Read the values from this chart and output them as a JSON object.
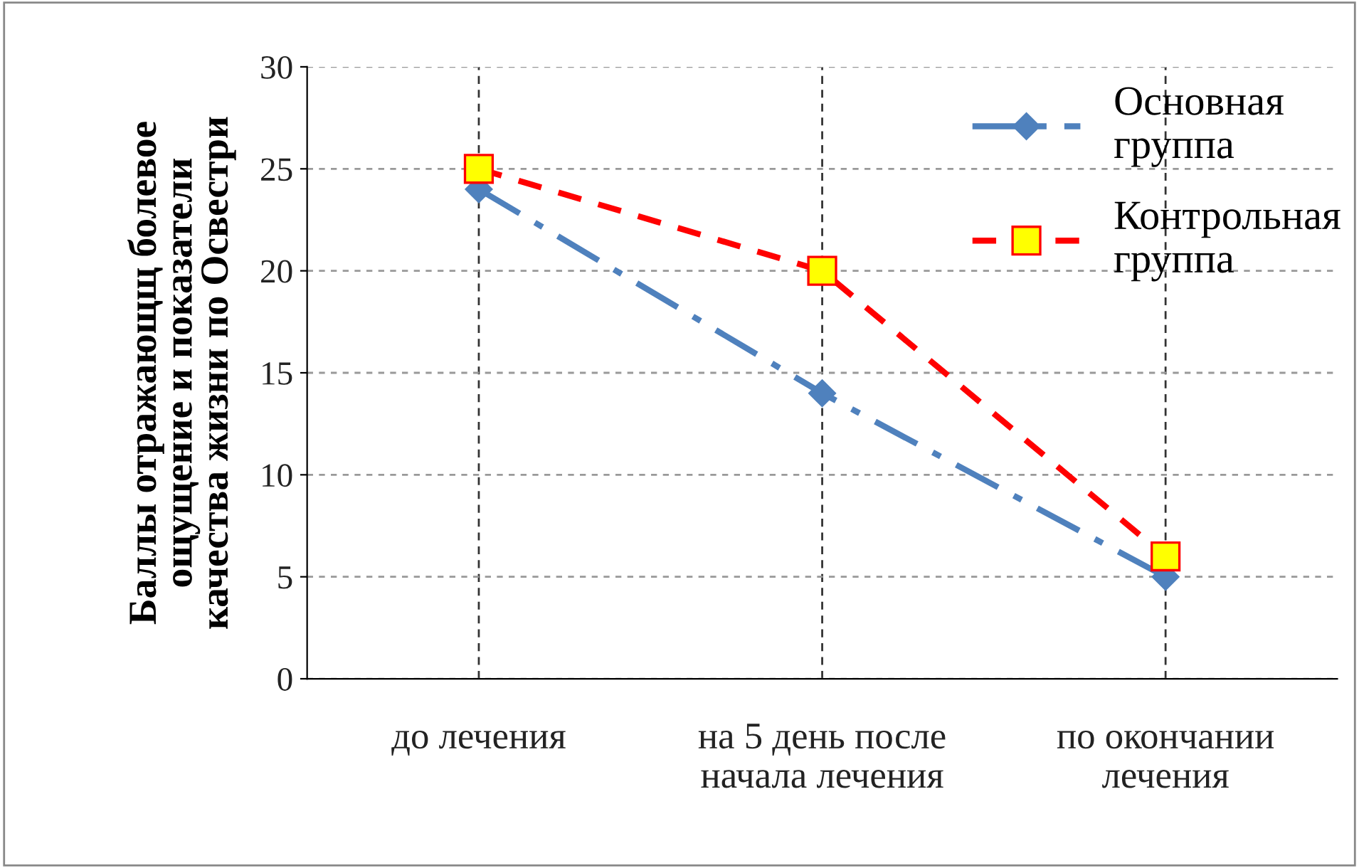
{
  "chart_data": {
    "type": "line",
    "ylabel": "Баллы отражающщ болевое\nощущение и показатели\nкачества жизни по Освестри",
    "categories": [
      "до лечения",
      "на 5 день после\nначала лечения",
      "по окончании\nлечения"
    ],
    "series": [
      {
        "name": "Основная\nгруппа",
        "color": "#4f81bd",
        "values": [
          24,
          14,
          5
        ],
        "marker": "diamond",
        "line_style": "dashdot"
      },
      {
        "name": "Контрольная\nгруппа",
        "color": "#ff0000",
        "values": [
          25,
          20,
          6
        ],
        "marker": "square",
        "line_style": "dashed"
      }
    ],
    "ylim": [
      0,
      30
    ],
    "yticks": [
      0,
      5,
      10,
      15,
      20,
      25,
      30
    ],
    "grid": true,
    "legend": "top right"
  }
}
